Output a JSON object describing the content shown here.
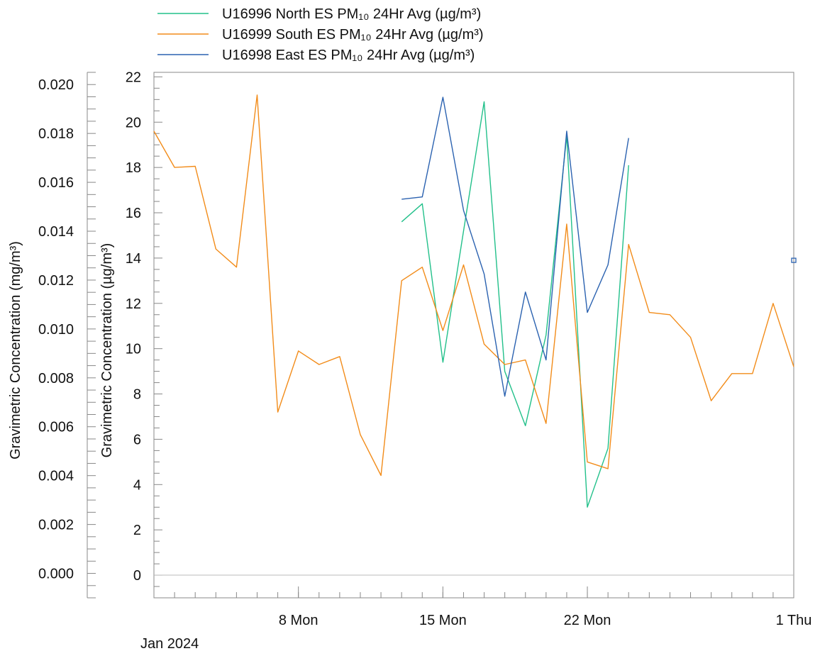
{
  "chart_data": {
    "type": "line",
    "x_unit": "day",
    "x_reference": "Jan 2024",
    "x_range": [
      "2024-01-01",
      "2024-02-01"
    ],
    "left_axis": {
      "label": "Gravimetric Concentration (mg/m³)",
      "ylim": [
        -0.001,
        0.0205
      ],
      "ticks": [
        "0.000",
        "0.002",
        "0.004",
        "0.006",
        "0.008",
        "0.010",
        "0.012",
        "0.014",
        "0.016",
        "0.018",
        "0.020"
      ]
    },
    "right_axis": {
      "label": "Gravimetric Concentration (µg/m³)",
      "ylim": [
        -1,
        22.2
      ],
      "ticks": [
        "0",
        "2",
        "4",
        "6",
        "8",
        "10",
        "12",
        "14",
        "16",
        "18",
        "20",
        "22"
      ]
    },
    "x_ticks": [
      {
        "date": "2024-01-08",
        "label": "8 Mon"
      },
      {
        "date": "2024-01-15",
        "label": "15 Mon"
      },
      {
        "date": "2024-01-22",
        "label": "22 Mon"
      },
      {
        "date": "2024-02-01",
        "label": "1 Thu"
      }
    ],
    "x_month_label": "Jan 2024",
    "grid": {
      "zero_line": true
    },
    "legend_position": "top-left",
    "series": [
      {
        "name": "U16996 North ES PM₁₀ 24Hr Avg (µg/m³)",
        "color": "#22c08a",
        "points": [
          [
            "2024-01-13",
            15.6
          ],
          [
            "2024-01-14",
            16.4
          ],
          [
            "2024-01-15",
            9.4
          ],
          [
            "2024-01-16",
            15.2
          ],
          [
            "2024-01-17",
            20.9
          ],
          [
            "2024-01-18",
            9.0
          ],
          [
            "2024-01-19",
            6.6
          ],
          [
            "2024-01-20",
            10.6
          ],
          [
            "2024-01-21",
            19.4
          ],
          [
            "2024-01-22",
            3.0
          ],
          [
            "2024-01-23",
            5.6
          ],
          [
            "2024-01-24",
            18.1
          ]
        ]
      },
      {
        "name": "U16999 South ES PM₁₀ 24Hr Avg (µg/m³)",
        "color": "#f28c1a",
        "points": [
          [
            "2024-01-01",
            19.6
          ],
          [
            "2024-01-02",
            18.0
          ],
          [
            "2024-01-03",
            18.05
          ],
          [
            "2024-01-04",
            14.4
          ],
          [
            "2024-01-05",
            13.6
          ],
          [
            "2024-01-06",
            21.2
          ],
          [
            "2024-01-07",
            7.2
          ],
          [
            "2024-01-08",
            9.9
          ],
          [
            "2024-01-09",
            9.3
          ],
          [
            "2024-01-10",
            9.65
          ],
          [
            "2024-01-11",
            6.2
          ],
          [
            "2024-01-12",
            4.4
          ],
          [
            "2024-01-13",
            13.0
          ],
          [
            "2024-01-14",
            13.6
          ],
          [
            "2024-01-15",
            10.8
          ],
          [
            "2024-01-16",
            13.7
          ],
          [
            "2024-01-17",
            10.2
          ],
          [
            "2024-01-18",
            9.3
          ],
          [
            "2024-01-19",
            9.5
          ],
          [
            "2024-01-20",
            6.7
          ],
          [
            "2024-01-21",
            15.5
          ],
          [
            "2024-01-22",
            5.0
          ],
          [
            "2024-01-23",
            4.7
          ],
          [
            "2024-01-24",
            14.6
          ],
          [
            "2024-01-25",
            11.6
          ],
          [
            "2024-01-26",
            11.5
          ],
          [
            "2024-01-27",
            10.5
          ],
          [
            "2024-01-28",
            7.7
          ],
          [
            "2024-01-29",
            8.9
          ],
          [
            "2024-01-30",
            8.9
          ],
          [
            "2024-01-31",
            12.0
          ],
          [
            "2024-02-01",
            9.2
          ]
        ]
      },
      {
        "name": "U16998 East ES PM₁₀ 24Hr Avg (µg/m³)",
        "color": "#2b62b0",
        "points": [
          [
            "2024-01-13",
            16.6
          ],
          [
            "2024-01-14",
            16.7
          ],
          [
            "2024-01-15",
            21.1
          ],
          [
            "2024-01-16",
            16.1
          ],
          [
            "2024-01-17",
            13.3
          ],
          [
            "2024-01-18",
            7.9
          ],
          [
            "2024-01-19",
            12.5
          ],
          [
            "2024-01-20",
            9.5
          ],
          [
            "2024-01-21",
            19.6
          ],
          [
            "2024-01-22",
            11.6
          ],
          [
            "2024-01-23",
            13.7
          ],
          [
            "2024-01-24",
            19.3
          ],
          [
            "2024-02-01",
            13.9
          ]
        ]
      }
    ]
  }
}
